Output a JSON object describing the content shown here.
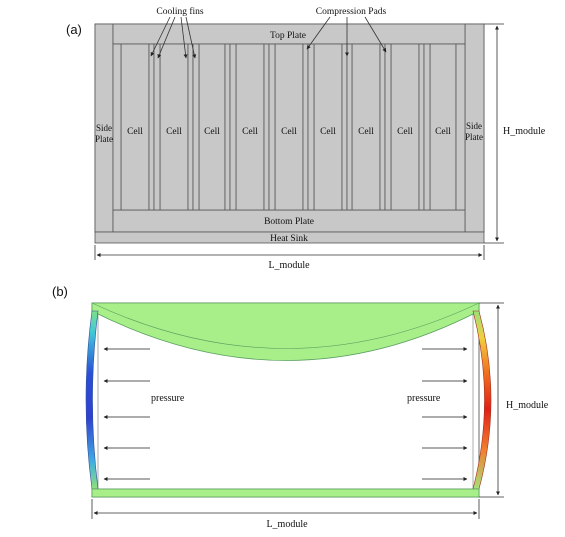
{
  "panel_a": {
    "label": "(a)",
    "top_plate": "Top Plate",
    "bottom_plate": "Bottom Plate",
    "heat_sink": "Heat Sink",
    "side_plate_line1": "Side",
    "side_plate_line2": "Plate",
    "cells": [
      "Cell",
      "Cell",
      "Cell",
      "Cell",
      "Cell",
      "Cell",
      "Cell",
      "Cell",
      "Cell"
    ],
    "cooling_fins_label": "Cooling fins",
    "compression_pads_label": "Compression Pads",
    "h_module": "H_module",
    "l_module": "L_module"
  },
  "panel_b": {
    "label": "(b)",
    "pressure_left": "pressure",
    "pressure_right": "pressure",
    "h_module": "H_module",
    "l_module": "L_module"
  },
  "colors": {
    "plate_gray": "#c8c8c8",
    "deformed_green": "#a8ef8a",
    "strain_high": "#e0201a",
    "strain_low": "#2040d0"
  }
}
